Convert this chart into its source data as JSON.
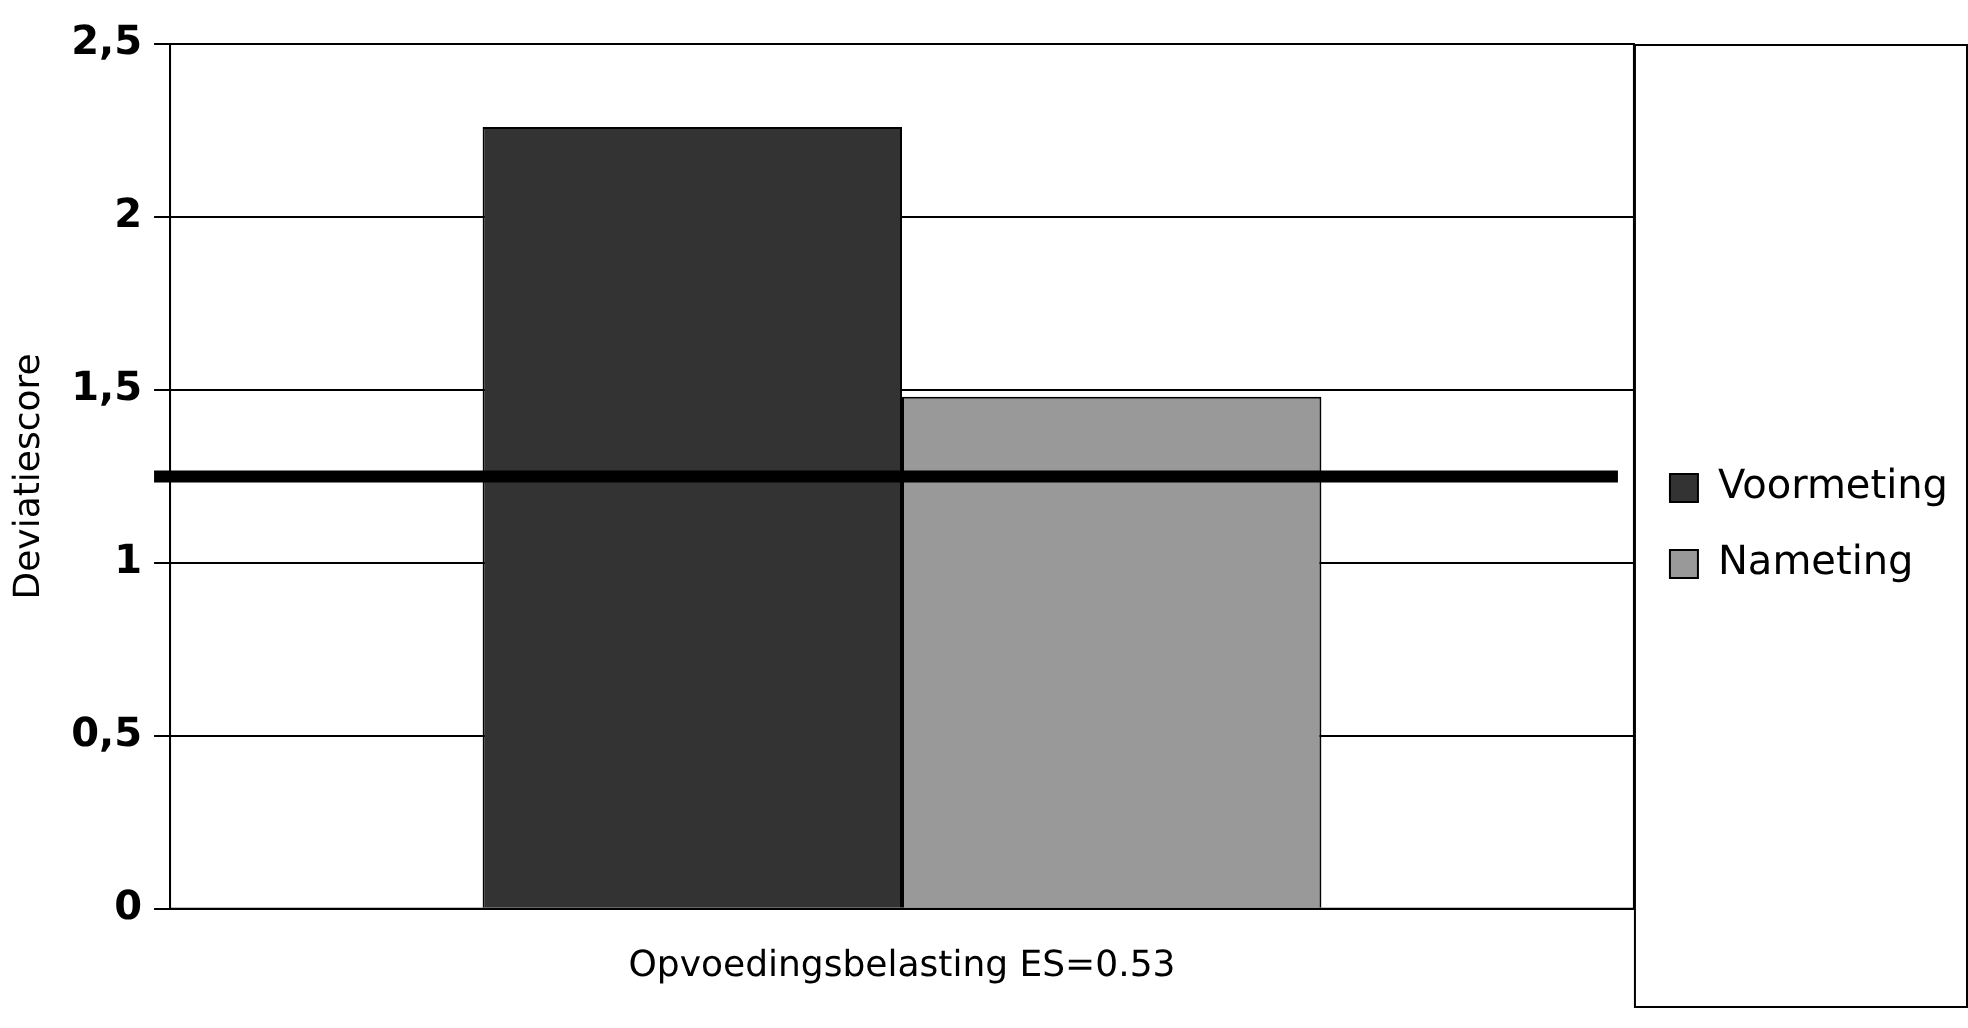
{
  "chart_data": {
    "type": "bar",
    "ylabel": "Deviatiescore",
    "categories": [
      "Opvoedingsbelasting ES=0.53"
    ],
    "series": [
      {
        "name": "Voormeting",
        "color": "#333333",
        "values": [
          2.26
        ]
      },
      {
        "name": "Nameting",
        "color": "#999999",
        "values": [
          1.48
        ]
      }
    ],
    "ylim": [
      0,
      2.5
    ],
    "yticks": [
      0,
      {
        "value": 0.5,
        "label": "0,5"
      },
      1,
      {
        "value": 1.5,
        "label": "1,5"
      },
      2,
      {
        "value": 2.5,
        "label": "2,5"
      }
    ],
    "grid": "y",
    "legend": "right",
    "ref_lines": [
      {
        "axis": "y",
        "value": 1.25,
        "color": "#000000"
      }
    ]
  }
}
